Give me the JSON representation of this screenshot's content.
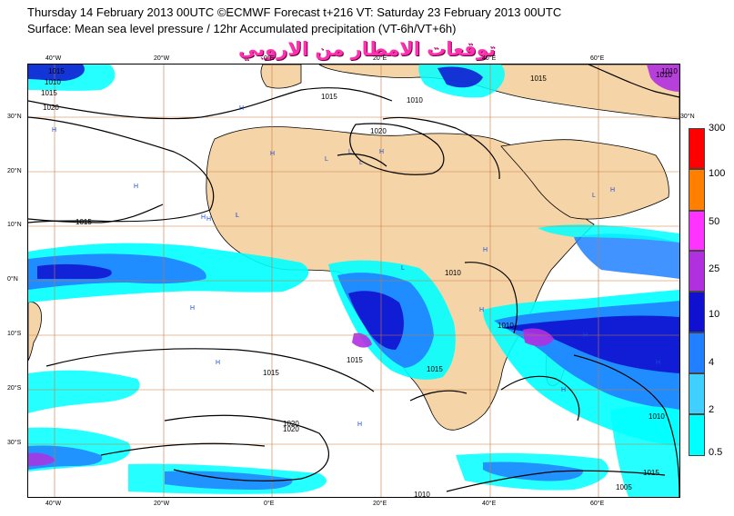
{
  "header": {
    "line1": "Thursday 14 February 2013 00UTC ©ECMWF Forecast t+216 VT: Saturday 23 February 2013 00UTC",
    "line2": "Surface: Mean sea level pressure / 12hr Accumulated precipitation (VT-6h/VT+6h)",
    "arabic_overlay": "توقعات الامطار من الاروبي"
  },
  "colors": {
    "land": "#f5d5a8",
    "grid": "#c87a40",
    "isobar": "#000000",
    "coast": "#000000"
  },
  "map": {
    "lon_labels": [
      "40°W",
      "20°W",
      "0°E",
      "20°E",
      "40°E",
      "60°E"
    ],
    "lat_labels": [
      "30°N",
      "20°N",
      "10°N",
      "0°N",
      "10°S",
      "20°S",
      "30°S"
    ],
    "isobar_labels": [
      "1015",
      "1010",
      "1015",
      "1020",
      "1015",
      "1010",
      "1015",
      "1020",
      "1015",
      "1020",
      "1015",
      "1010",
      "1015",
      "1010",
      "1010",
      "1015",
      "1020",
      "1010",
      "1015",
      "1005",
      "1010",
      "1010"
    ],
    "pressure_centres": [
      "H",
      "H",
      "H",
      "H",
      "H",
      "H",
      "H",
      "H",
      "L",
      "L",
      "L",
      "H",
      "H",
      "L",
      "H",
      "H",
      "L",
      "L",
      "H",
      "H",
      "L",
      "H",
      "H"
    ]
  },
  "legend": {
    "title": "",
    "levels": [
      "300",
      "100",
      "50",
      "25",
      "10",
      "4",
      "2",
      "0.5"
    ],
    "colors": [
      "#ff0000",
      "#ff8000",
      "#ff33ff",
      "#b030e0",
      "#1010d0",
      "#2080ff",
      "#40d0ff",
      "#00ffff"
    ]
  }
}
